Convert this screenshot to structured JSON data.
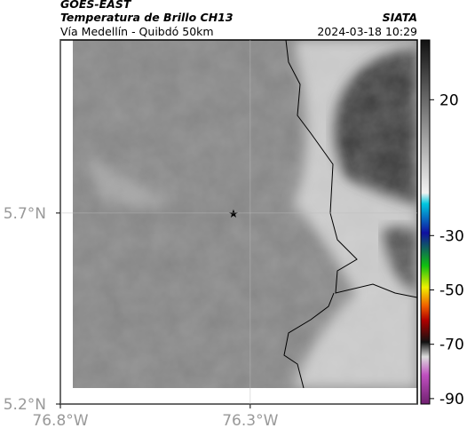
{
  "header": {
    "satellite": "GOES-EAST",
    "product": "Temperatura de Brillo CH13",
    "source": "SIATA",
    "route": "Vía Medellín - Quibdó 50km",
    "timestamp": "2024-03-18 10:29"
  },
  "map": {
    "xlim": [
      -76.8,
      -75.86
    ],
    "ylim": [
      5.2,
      6.153
    ],
    "xticks": [
      {
        "value": -76.8,
        "label": "76.8°W"
      },
      {
        "value": -76.3,
        "label": "76.3°W"
      }
    ],
    "yticks": [
      {
        "value": 5.2,
        "label": "5.2°N"
      },
      {
        "value": 5.7,
        "label": "5.7°N"
      }
    ]
  },
  "colorbar": {
    "lim": [
      -92,
      42
    ],
    "ticks": [
      20,
      -30,
      -50,
      -70,
      -90
    ]
  }
}
